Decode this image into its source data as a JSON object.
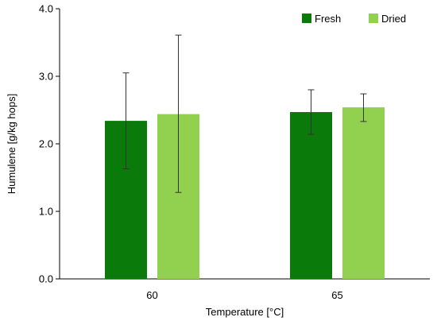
{
  "chart_data": {
    "type": "bar",
    "categories": [
      "60",
      "65"
    ],
    "series": [
      {
        "name": "Fresh",
        "color": "#0a7a0a",
        "values": [
          2.34,
          2.47
        ],
        "error": [
          [
            1.63,
            3.05
          ],
          [
            2.14,
            2.8
          ]
        ]
      },
      {
        "name": "Dried",
        "color": "#92d050",
        "values": [
          2.44,
          2.54
        ],
        "error": [
          [
            1.28,
            3.61
          ],
          [
            2.33,
            2.74
          ]
        ]
      }
    ],
    "xlabel": "Temperature [°C]",
    "ylabel": "Humulene [g/kg hops]",
    "ylim": [
      0,
      4
    ],
    "yticks": [
      "0.0",
      "1.0",
      "2.0",
      "3.0",
      "4.0"
    ],
    "grid": false,
    "legend_position": "top-right"
  }
}
